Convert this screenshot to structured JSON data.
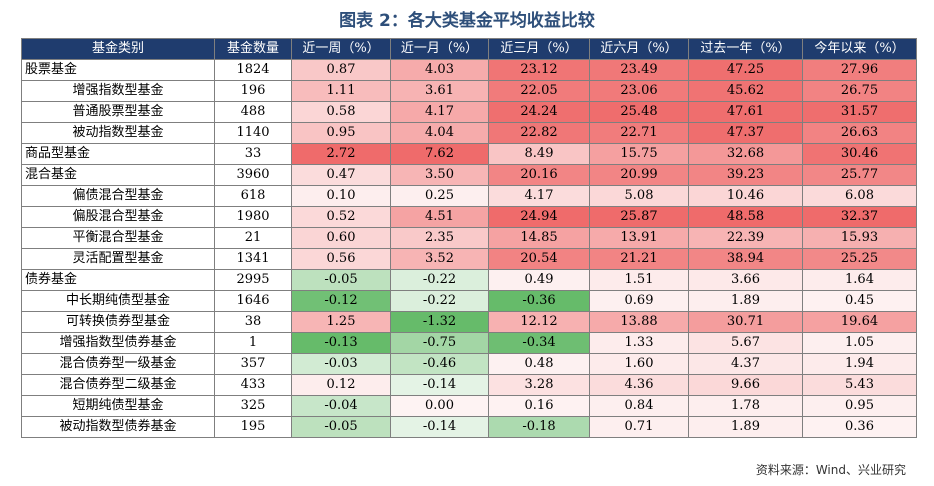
{
  "title": "图表 2：各大类基金平均收益比较",
  "headers": [
    "基金类别",
    "基金数量",
    "近一周（%）",
    "近一月（%）",
    "近三月（%）",
    "近六月（%）",
    "过去一年（%）",
    "今年以来（%）"
  ],
  "rows": [
    {
      "name": "股票基金",
      "count": "1824",
      "level": 0,
      "values": [
        "0.87",
        "4.03",
        "23.12",
        "23.49",
        "47.25",
        "27.96"
      ]
    },
    {
      "name": "增强指数型基金",
      "count": "196",
      "level": 1,
      "values": [
        "1.11",
        "3.61",
        "22.05",
        "23.06",
        "45.62",
        "26.75"
      ]
    },
    {
      "name": "普通股票型基金",
      "count": "488",
      "level": 1,
      "values": [
        "0.58",
        "4.17",
        "24.24",
        "25.48",
        "47.61",
        "31.57"
      ]
    },
    {
      "name": "被动指数型基金",
      "count": "1140",
      "level": 1,
      "values": [
        "0.95",
        "4.04",
        "22.82",
        "22.71",
        "47.37",
        "26.63"
      ]
    },
    {
      "name": "商品型基金",
      "count": "33",
      "level": 0,
      "values": [
        "2.72",
        "7.62",
        "8.49",
        "15.75",
        "32.68",
        "30.46"
      ]
    },
    {
      "name": "混合基金",
      "count": "3960",
      "level": 0,
      "values": [
        "0.47",
        "3.50",
        "20.16",
        "20.99",
        "39.23",
        "25.77"
      ]
    },
    {
      "name": "偏债混合型基金",
      "count": "618",
      "level": 1,
      "values": [
        "0.10",
        "0.25",
        "4.17",
        "5.08",
        "10.46",
        "6.08"
      ]
    },
    {
      "name": "偏股混合型基金",
      "count": "1980",
      "level": 1,
      "values": [
        "0.52",
        "4.51",
        "24.94",
        "25.87",
        "48.58",
        "32.37"
      ]
    },
    {
      "name": "平衡混合型基金",
      "count": "21",
      "level": 1,
      "values": [
        "0.60",
        "2.35",
        "14.85",
        "13.91",
        "22.39",
        "15.93"
      ]
    },
    {
      "name": "灵活配置型基金",
      "count": "1341",
      "level": 1,
      "values": [
        "0.56",
        "3.52",
        "20.54",
        "21.21",
        "38.94",
        "25.25"
      ]
    },
    {
      "name": "债券基金",
      "count": "2995",
      "level": 0,
      "values": [
        "-0.05",
        "-0.22",
        "0.49",
        "1.51",
        "3.66",
        "1.64"
      ]
    },
    {
      "name": "中长期纯债型基金",
      "count": "1646",
      "level": 1,
      "values": [
        "-0.12",
        "-0.22",
        "-0.36",
        "0.69",
        "1.89",
        "0.45"
      ]
    },
    {
      "name": "可转换债券型基金",
      "count": "38",
      "level": 1,
      "values": [
        "1.25",
        "-1.32",
        "12.12",
        "13.88",
        "30.71",
        "19.64"
      ]
    },
    {
      "name": "增强指数型债券基金",
      "count": "1",
      "level": 1,
      "values": [
        "-0.13",
        "-0.75",
        "-0.34",
        "1.33",
        "5.67",
        "1.05"
      ]
    },
    {
      "name": "混合债券型一级基金",
      "count": "357",
      "level": 1,
      "values": [
        "-0.03",
        "-0.46",
        "0.48",
        "1.60",
        "4.37",
        "1.94"
      ]
    },
    {
      "name": "混合债券型二级基金",
      "count": "433",
      "level": 1,
      "values": [
        "0.12",
        "-0.14",
        "3.28",
        "4.36",
        "9.66",
        "5.43"
      ]
    },
    {
      "name": "短期纯债型基金",
      "count": "325",
      "level": 1,
      "values": [
        "-0.04",
        "0.00",
        "0.16",
        "0.84",
        "1.78",
        "0.95"
      ]
    },
    {
      "name": "被动指数型债券基金",
      "count": "195",
      "level": 1,
      "values": [
        "-0.05",
        "-0.14",
        "-0.18",
        "0.71",
        "1.89",
        "0.36"
      ]
    }
  ],
  "colors": {
    "header_bg": "#1f3c6e",
    "positive_max": "#ef6b6b",
    "negative_max": "#66bb6a",
    "neutral": "#ffffff"
  },
  "source": "资料来源：Wind、兴业研究"
}
